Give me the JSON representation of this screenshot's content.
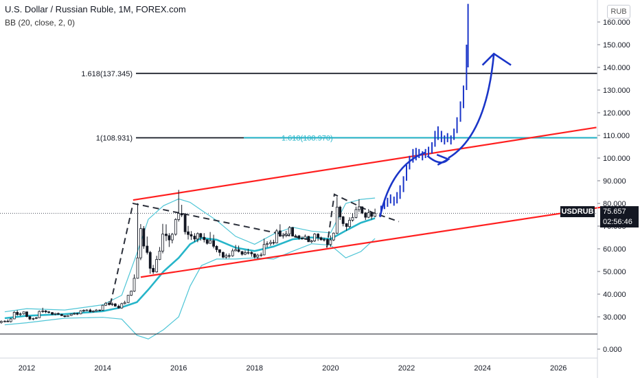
{
  "legend": {
    "title": "U.S. Dollar / Russian Ruble, 1M, FOREX.com",
    "indicator": "BB (20, close, 2, 0)"
  },
  "price_scale": {
    "unit_label": "RUB"
  },
  "last_price": {
    "symbol": "USDRUB",
    "value": "75.657",
    "countdown": "02:56:46"
  },
  "colors": {
    "up": "#ffffff",
    "down": "#131722",
    "bollinger_basis": "#26b5c9",
    "bollinger_bands": "#4ec5d6",
    "channel": "#ff1f1f",
    "projection": "#1a35c8",
    "fib_line": "#131722",
    "fib_line_cyan": "#26b5c9"
  },
  "chart_data": {
    "type": "candlestick",
    "x_axis": {
      "ticks": [
        "2012",
        "2014",
        "2016",
        "2018",
        "2020",
        "2022",
        "2024",
        "2026"
      ],
      "range": [
        2011.3,
        2027.0
      ]
    },
    "y_axis": {
      "ticks": [
        "0.000",
        "30.000",
        "40.000",
        "50.000",
        "60.000",
        "70.000",
        "80.000",
        "90.000",
        "100.000",
        "110.000",
        "120.000",
        "130.000",
        "140.000",
        "150.000",
        "160.000"
      ],
      "range": [
        -4,
        165
      ],
      "break_between": [
        0,
        26
      ]
    },
    "ohlc": [
      [
        2011.33,
        27.5,
        28.4,
        27.0,
        28.0
      ],
      [
        2011.42,
        28.0,
        28.5,
        27.6,
        28.1
      ],
      [
        2011.5,
        28.1,
        28.9,
        27.8,
        27.9
      ],
      [
        2011.58,
        27.9,
        29.5,
        27.5,
        29.1
      ],
      [
        2011.67,
        29.1,
        32.5,
        29.0,
        32.0
      ],
      [
        2011.75,
        32.0,
        32.9,
        30.5,
        31.0
      ],
      [
        2011.83,
        31.0,
        31.9,
        30.4,
        31.3
      ],
      [
        2011.92,
        31.3,
        32.3,
        31.0,
        32.2
      ],
      [
        2012.0,
        32.2,
        32.3,
        29.8,
        30.1
      ],
      [
        2012.08,
        30.1,
        30.4,
        28.6,
        29.0
      ],
      [
        2012.17,
        29.0,
        29.6,
        28.5,
        29.3
      ],
      [
        2012.25,
        29.3,
        30.0,
        29.0,
        29.6
      ],
      [
        2012.33,
        29.6,
        32.8,
        29.5,
        32.4
      ],
      [
        2012.42,
        32.4,
        34.0,
        31.8,
        32.6
      ],
      [
        2012.5,
        32.6,
        33.0,
        31.6,
        32.2
      ],
      [
        2012.58,
        32.2,
        32.6,
        31.5,
        31.9
      ],
      [
        2012.67,
        31.9,
        32.1,
        30.8,
        31.1
      ],
      [
        2012.75,
        31.1,
        31.7,
        30.7,
        31.5
      ],
      [
        2012.83,
        31.5,
        31.9,
        30.9,
        31.1
      ],
      [
        2012.92,
        31.1,
        31.3,
        30.4,
        30.5
      ],
      [
        2013.0,
        30.5,
        30.6,
        29.8,
        30.1
      ],
      [
        2013.08,
        30.1,
        30.8,
        30.0,
        30.6
      ],
      [
        2013.17,
        30.6,
        31.4,
        30.4,
        31.2
      ],
      [
        2013.25,
        31.2,
        31.9,
        30.9,
        31.5
      ],
      [
        2013.33,
        31.5,
        31.8,
        30.8,
        31.3
      ],
      [
        2013.42,
        31.3,
        32.9,
        31.1,
        32.7
      ],
      [
        2013.5,
        32.7,
        33.3,
        32.0,
        32.9
      ],
      [
        2013.58,
        32.9,
        33.3,
        32.6,
        33.0
      ],
      [
        2013.67,
        33.0,
        33.6,
        32.0,
        32.2
      ],
      [
        2013.75,
        32.2,
        32.9,
        31.9,
        32.5
      ],
      [
        2013.83,
        32.5,
        33.4,
        32.3,
        33.0
      ],
      [
        2013.92,
        33.0,
        33.2,
        32.5,
        32.9
      ],
      [
        2014.0,
        32.9,
        35.3,
        32.8,
        35.1
      ],
      [
        2014.08,
        35.1,
        36.5,
        34.8,
        36.0
      ],
      [
        2014.17,
        36.0,
        36.9,
        35.0,
        35.4
      ],
      [
        2014.25,
        35.4,
        36.3,
        34.8,
        35.7
      ],
      [
        2014.33,
        35.7,
        36.1,
        34.5,
        34.7
      ],
      [
        2014.42,
        34.7,
        35.4,
        33.6,
        33.9
      ],
      [
        2014.5,
        33.9,
        36.2,
        33.6,
        35.8
      ],
      [
        2014.58,
        35.8,
        37.1,
        35.5,
        36.3
      ],
      [
        2014.67,
        36.3,
        39.7,
        36.1,
        39.5
      ],
      [
        2014.75,
        39.5,
        41.6,
        39.2,
        41.3
      ],
      [
        2014.83,
        41.3,
        48.7,
        41.0,
        47.0
      ],
      [
        2014.92,
        47.0,
        80.1,
        46.8,
        56.0
      ],
      [
        2015.0,
        56.0,
        70.9,
        55.0,
        68.9
      ],
      [
        2015.08,
        68.9,
        70.0,
        60.0,
        61.2
      ],
      [
        2015.17,
        61.2,
        65.4,
        57.5,
        58.4
      ],
      [
        2015.25,
        58.4,
        59.1,
        49.0,
        51.4
      ],
      [
        2015.33,
        51.4,
        52.9,
        48.9,
        49.8
      ],
      [
        2015.42,
        49.8,
        56.9,
        49.5,
        55.3
      ],
      [
        2015.5,
        55.3,
        60.8,
        55.0,
        59.0
      ],
      [
        2015.58,
        59.0,
        71.0,
        58.0,
        66.5
      ],
      [
        2015.67,
        66.5,
        70.8,
        63.4,
        65.8
      ],
      [
        2015.75,
        65.8,
        66.9,
        60.8,
        63.9
      ],
      [
        2015.83,
        63.9,
        67.0,
        62.4,
        66.4
      ],
      [
        2015.92,
        66.4,
        73.5,
        65.8,
        72.9
      ],
      [
        2016.0,
        72.9,
        86.0,
        72.0,
        75.6
      ],
      [
        2016.08,
        75.6,
        79.4,
        74.0,
        74.9
      ],
      [
        2016.17,
        74.9,
        75.1,
        66.3,
        67.5
      ],
      [
        2016.25,
        67.5,
        70.1,
        64.1,
        66.3
      ],
      [
        2016.33,
        66.3,
        67.8,
        63.9,
        65.6
      ],
      [
        2016.42,
        65.6,
        66.9,
        63.1,
        64.3
      ],
      [
        2016.5,
        64.3,
        67.2,
        62.9,
        66.7
      ],
      [
        2016.58,
        66.7,
        67.0,
        63.6,
        65.1
      ],
      [
        2016.67,
        65.1,
        66.9,
        62.8,
        64.0
      ],
      [
        2016.75,
        64.0,
        64.2,
        61.8,
        62.4
      ],
      [
        2016.83,
        62.4,
        67.4,
        62.3,
        63.6
      ],
      [
        2016.92,
        63.6,
        66.2,
        60.2,
        61.1
      ],
      [
        2017.0,
        61.1,
        61.6,
        58.5,
        59.6
      ],
      [
        2017.08,
        59.6,
        59.8,
        56.8,
        58.4
      ],
      [
        2017.17,
        58.4,
        58.8,
        55.8,
        56.3
      ],
      [
        2017.25,
        56.3,
        57.9,
        55.6,
        57.0
      ],
      [
        2017.33,
        57.0,
        58.0,
        55.9,
        56.9
      ],
      [
        2017.42,
        56.9,
        60.1,
        56.5,
        59.1
      ],
      [
        2017.5,
        59.1,
        61.7,
        58.9,
        59.6
      ],
      [
        2017.58,
        59.6,
        61.4,
        58.4,
        58.8
      ],
      [
        2017.67,
        58.8,
        59.0,
        57.0,
        57.6
      ],
      [
        2017.75,
        57.6,
        59.3,
        57.2,
        58.3
      ],
      [
        2017.83,
        58.3,
        60.0,
        57.5,
        58.4
      ],
      [
        2017.92,
        58.4,
        58.9,
        56.5,
        57.8
      ],
      [
        2018.0,
        57.8,
        57.9,
        55.7,
        56.4
      ],
      [
        2018.08,
        56.4,
        57.8,
        55.6,
        57.2
      ],
      [
        2018.17,
        57.2,
        58.3,
        56.5,
        57.3
      ],
      [
        2018.25,
        57.3,
        64.5,
        57.1,
        61.9
      ],
      [
        2018.33,
        61.9,
        63.3,
        60.6,
        62.3
      ],
      [
        2018.42,
        62.3,
        63.9,
        61.3,
        62.8
      ],
      [
        2018.5,
        62.8,
        64.0,
        61.8,
        62.6
      ],
      [
        2018.58,
        62.6,
        68.7,
        62.4,
        67.9
      ],
      [
        2018.67,
        67.9,
        70.8,
        65.2,
        65.6
      ],
      [
        2018.75,
        65.6,
        67.0,
        64.5,
        66.0
      ],
      [
        2018.83,
        66.0,
        67.9,
        65.1,
        66.6
      ],
      [
        2018.92,
        66.6,
        70.0,
        66.0,
        69.4
      ],
      [
        2019.0,
        69.4,
        69.6,
        65.4,
        65.6
      ],
      [
        2019.08,
        65.6,
        66.4,
        65.0,
        65.7
      ],
      [
        2019.17,
        65.7,
        66.1,
        64.0,
        64.7
      ],
      [
        2019.25,
        64.7,
        65.5,
        64.0,
        64.5
      ],
      [
        2019.33,
        64.5,
        66.3,
        64.0,
        65.5
      ],
      [
        2019.42,
        65.5,
        65.7,
        63.0,
        63.1
      ],
      [
        2019.5,
        63.1,
        64.0,
        62.5,
        63.5
      ],
      [
        2019.58,
        63.5,
        66.9,
        63.0,
        66.5
      ],
      [
        2019.67,
        66.5,
        66.9,
        63.5,
        64.9
      ],
      [
        2019.75,
        64.9,
        65.4,
        63.6,
        64.0
      ],
      [
        2019.83,
        64.0,
        64.9,
        63.2,
        64.1
      ],
      [
        2019.92,
        64.1,
        64.6,
        61.6,
        61.9
      ],
      [
        2020.0,
        61.9,
        65.9,
        60.9,
        63.9
      ],
      [
        2020.08,
        63.9,
        67.2,
        63.4,
        66.9
      ],
      [
        2020.17,
        66.9,
        82.9,
        66.5,
        78.4
      ],
      [
        2020.25,
        78.4,
        79.0,
        72.7,
        74.1
      ],
      [
        2020.33,
        74.1,
        74.5,
        69.9,
        71.1
      ],
      [
        2020.42,
        71.1,
        71.3,
        68.0,
        69.8
      ],
      [
        2020.5,
        69.8,
        73.9,
        69.1,
        72.6
      ],
      [
        2020.58,
        72.6,
        75.7,
        72.0,
        73.8
      ],
      [
        2020.67,
        73.8,
        78.6,
        73.4,
        77.3
      ],
      [
        2020.75,
        77.3,
        81.9,
        76.2,
        78.5
      ],
      [
        2020.83,
        78.5,
        78.7,
        75.3,
        75.8
      ],
      [
        2020.92,
        75.8,
        76.2,
        72.7,
        73.9
      ],
      [
        2021.0,
        73.9,
        77.5,
        73.5,
        75.9
      ],
      [
        2021.08,
        75.9,
        76.0,
        72.9,
        74.3
      ],
      [
        2021.17,
        74.3,
        77.7,
        73.9,
        75.66
      ]
    ],
    "bollinger": {
      "basis": [
        [
          2011.42,
          29.4
        ],
        [
          2012.0,
          30.5
        ],
        [
          2013.0,
          31.2
        ],
        [
          2014.0,
          32.5
        ],
        [
          2014.5,
          34.2
        ],
        [
          2014.9,
          36.5
        ],
        [
          2015.2,
          42.0
        ],
        [
          2015.6,
          50.0
        ],
        [
          2016.0,
          56.0
        ],
        [
          2016.3,
          62.0
        ],
        [
          2016.6,
          64.8
        ],
        [
          2017.0,
          64.0
        ],
        [
          2017.5,
          60.5
        ],
        [
          2018.0,
          59.0
        ],
        [
          2018.5,
          61.0
        ],
        [
          2019.0,
          64.2
        ],
        [
          2019.5,
          65.0
        ],
        [
          2020.0,
          64.3
        ],
        [
          2020.4,
          68.0
        ],
        [
          2020.8,
          71.5
        ],
        [
          2021.17,
          73.5
        ]
      ],
      "upper": [
        [
          2011.42,
          32.2
        ],
        [
          2012.0,
          33.6
        ],
        [
          2013.0,
          33.0
        ],
        [
          2014.0,
          35.3
        ],
        [
          2014.5,
          39.5
        ],
        [
          2014.9,
          58.0
        ],
        [
          2015.2,
          73.0
        ],
        [
          2015.6,
          79.0
        ],
        [
          2016.0,
          82.0
        ],
        [
          2016.3,
          80.5
        ],
        [
          2016.6,
          77.0
        ],
        [
          2017.0,
          72.5
        ],
        [
          2017.5,
          65.5
        ],
        [
          2018.0,
          62.0
        ],
        [
          2018.5,
          66.5
        ],
        [
          2019.0,
          69.5
        ],
        [
          2019.5,
          67.8
        ],
        [
          2020.0,
          67.0
        ],
        [
          2020.4,
          80.0
        ],
        [
          2020.8,
          81.8
        ],
        [
          2021.17,
          82.4
        ]
      ],
      "lower": [
        [
          2011.42,
          26.5
        ],
        [
          2012.0,
          27.4
        ],
        [
          2013.0,
          29.4
        ],
        [
          2014.0,
          29.8
        ],
        [
          2014.5,
          29.0
        ],
        [
          2014.9,
          15.0
        ],
        [
          2015.2,
          11.0
        ],
        [
          2015.6,
          21.0
        ],
        [
          2016.0,
          30.0
        ],
        [
          2016.3,
          43.5
        ],
        [
          2016.6,
          52.6
        ],
        [
          2017.0,
          55.5
        ],
        [
          2017.5,
          55.5
        ],
        [
          2018.0,
          56.0
        ],
        [
          2018.5,
          55.5
        ],
        [
          2019.0,
          58.9
        ],
        [
          2019.5,
          62.2
        ],
        [
          2020.0,
          61.6
        ],
        [
          2020.4,
          56.0
        ],
        [
          2020.8,
          58.8
        ],
        [
          2021.17,
          64.5
        ]
      ]
    },
    "fib_levels": [
      {
        "label": "1.618(137.345)",
        "value": 137.345,
        "color": "black"
      },
      {
        "label": "1(108.931)",
        "value": 108.931,
        "color": "black"
      },
      {
        "label": "1.618(108.970)",
        "value": 108.97,
        "color": "cyan"
      }
    ],
    "current_price": {
      "value": 75.657,
      "label": "USDRUB"
    },
    "trendlines": [
      {
        "kind": "channel-upper",
        "from": [
          2014.8,
          81.5
        ],
        "to": [
          2027.0,
          113.5
        ]
      },
      {
        "kind": "channel-lower",
        "from": [
          2015.0,
          47.5
        ],
        "to": [
          2027.2,
          78.5
        ]
      },
      {
        "kind": "dashed",
        "points": [
          [
            2014.2,
            35.5
          ],
          [
            2014.8,
            80.0
          ],
          [
            2019.5,
            63.8
          ]
        ]
      },
      {
        "kind": "dashed",
        "points": [
          [
            2019.9,
            60.5
          ],
          [
            2020.1,
            84.0
          ],
          [
            2021.1,
            76.0
          ],
          [
            2021.8,
            72.0
          ]
        ]
      }
    ],
    "projection": {
      "bars_up_to": 2023.6,
      "arrows": [
        {
          "from": [
            2021.3,
            74.0
          ],
          "to": [
            2022.5,
            102.5
          ]
        },
        {
          "from": [
            2022.6,
            102.0
          ],
          "to": [
            2023.3,
            100.0
          ]
        },
        {
          "from": [
            2023.1,
            100.0
          ],
          "to": [
            2024.3,
            146.0
          ]
        }
      ]
    }
  }
}
